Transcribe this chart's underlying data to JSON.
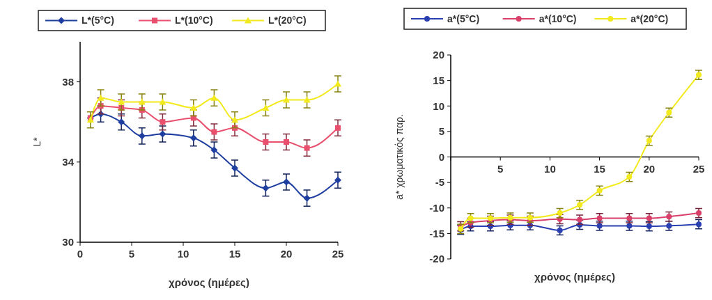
{
  "chart_data": [
    {
      "type": "line",
      "xlabel": "χρόνος (ημέρες)",
      "ylabel": "L*",
      "x": [
        1,
        2,
        4,
        6,
        8,
        11,
        13,
        15,
        18,
        20,
        22,
        25
      ],
      "xlim": [
        0,
        25
      ],
      "xticks": [
        0,
        5,
        10,
        15,
        20,
        25
      ],
      "ylim": [
        30,
        40
      ],
      "yticks": [
        30,
        34,
        38
      ],
      "legend": "top",
      "grid": false,
      "series": [
        {
          "name": "L*(5°C)",
          "color": "#1f3fa0",
          "marker": "diamond",
          "values": [
            36.2,
            36.4,
            36.0,
            35.3,
            35.4,
            35.2,
            34.6,
            33.7,
            32.7,
            33.0,
            32.2,
            33.1
          ],
          "errors": [
            null,
            0.4,
            0.4,
            0.4,
            0.4,
            0.4,
            0.4,
            0.4,
            0.4,
            0.4,
            0.4,
            0.4
          ]
        },
        {
          "name": "L*(10°C)",
          "color": "#e8506e",
          "marker": "square",
          "values": [
            36.2,
            36.8,
            36.7,
            36.6,
            36.0,
            36.2,
            35.5,
            35.7,
            35.0,
            35.0,
            34.7,
            35.7
          ],
          "errors": [
            null,
            0.4,
            0.4,
            0.4,
            0.4,
            0.4,
            0.4,
            0.4,
            0.4,
            0.4,
            0.4,
            0.4
          ]
        },
        {
          "name": "L*(20°C)",
          "color": "#f2ea1c",
          "marker": "triangle",
          "values": [
            36.1,
            37.2,
            37.0,
            37.0,
            37.0,
            36.7,
            37.2,
            36.1,
            36.7,
            37.1,
            37.1,
            37.9
          ],
          "errors": [
            0.4,
            0.4,
            0.4,
            0.4,
            0.4,
            0.4,
            0.4,
            0.4,
            0.4,
            0.4,
            0.4,
            0.4
          ]
        }
      ]
    },
    {
      "type": "line",
      "xlabel": "χρόνος (ημέρες)",
      "ylabel": "a* χρωματικός παρ.",
      "x": [
        1,
        2,
        4,
        6,
        8,
        11,
        13,
        15,
        18,
        20,
        22,
        25
      ],
      "xlim": [
        0,
        25
      ],
      "xticks": [
        {
          "value": 0,
          "label": null
        },
        5,
        10,
        15,
        20,
        25
      ],
      "ylim": [
        -20,
        20
      ],
      "yticks": [
        -20,
        -15,
        -10,
        -5,
        0,
        5,
        10,
        15,
        20
      ],
      "legend": "top",
      "grid": false,
      "series": [
        {
          "name": "a*(5°C)",
          "color": "#2a3fb0",
          "marker": "circle",
          "values": [
            -14.3,
            -13.6,
            -13.6,
            -13.4,
            -13.4,
            -14.4,
            -13.3,
            -13.5,
            -13.5,
            -13.6,
            -13.5,
            -13.2
          ],
          "errors": [
            0.9,
            0.9,
            0.9,
            0.9,
            0.9,
            0.9,
            0.9,
            0.9,
            0.9,
            0.9,
            0.9,
            0.9
          ]
        },
        {
          "name": "a*(10°C)",
          "color": "#d8406a",
          "marker": "circle",
          "values": [
            -13.6,
            -12.9,
            -12.5,
            -12.3,
            -12.5,
            -12.2,
            -12.3,
            -12.0,
            -12.0,
            -12.0,
            -11.7,
            -11.0
          ],
          "errors": [
            0.9,
            0.9,
            0.9,
            0.9,
            0.9,
            0.9,
            0.9,
            0.9,
            0.9,
            0.9,
            0.9,
            0.9
          ]
        },
        {
          "name": "a*(20°C)",
          "color": "#f2ea1c",
          "marker": "circle",
          "values": [
            -14.1,
            -12.0,
            -12.0,
            -11.9,
            -11.9,
            -11.0,
            -9.4,
            -6.6,
            -3.9,
            3.2,
            8.7,
            16.1
          ],
          "errors": [
            0.9,
            0.9,
            0.9,
            0.9,
            0.9,
            0.9,
            0.9,
            0.9,
            0.9,
            0.9,
            0.9,
            0.9
          ]
        }
      ]
    }
  ]
}
